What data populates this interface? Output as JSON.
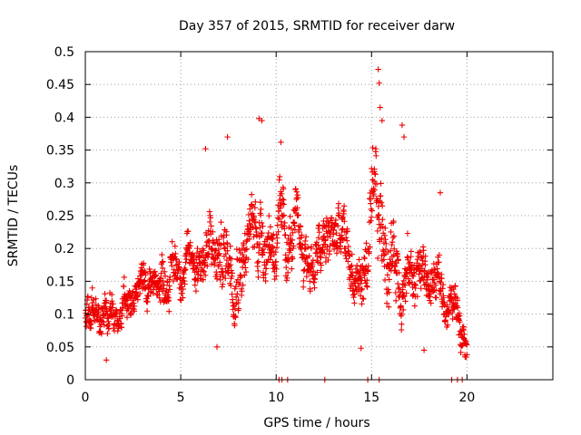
{
  "chart_data": {
    "type": "scatter",
    "title": "Day 357 of 2015, SRMTID for receiver darw",
    "xlabel": "GPS time / hours",
    "ylabel": "SRMTID / TECUs",
    "xlim": [
      0,
      24.5
    ],
    "ylim": [
      0,
      0.5
    ],
    "xticks": [
      0,
      5,
      10,
      15,
      20
    ],
    "xtick_labels": [
      "0",
      "5",
      "10",
      "15",
      "20"
    ],
    "yticks": [
      0,
      0.05,
      0.1,
      0.15,
      0.2,
      0.25,
      0.3,
      0.35,
      0.4,
      0.45,
      0.5
    ],
    "ytick_labels": [
      "0",
      "0.05",
      "0.1",
      "0.15",
      "0.2",
      "0.25",
      "0.3",
      "0.35",
      "0.4",
      "0.45",
      "0.5"
    ],
    "grid": true,
    "marker": "plus",
    "marker_color": "#ee0000",
    "series": [
      {
        "name": "SRMTID",
        "envelope": {
          "hours": [
            0.0,
            0.5,
            1.0,
            1.5,
            2.0,
            2.5,
            3.0,
            3.5,
            4.0,
            4.5,
            5.0,
            5.5,
            6.0,
            6.5,
            7.0,
            7.5,
            8.0,
            8.5,
            9.0,
            9.5,
            10.0,
            10.5,
            11.0,
            11.5,
            12.0,
            12.5,
            13.0,
            13.5,
            14.0,
            14.5,
            15.0,
            15.5,
            16.0,
            16.5,
            17.0,
            17.5,
            18.0,
            18.5,
            19.0,
            19.5,
            20.0
          ],
          "center": [
            0.095,
            0.105,
            0.1,
            0.105,
            0.1,
            0.11,
            0.14,
            0.15,
            0.16,
            0.17,
            0.18,
            0.175,
            0.2,
            0.19,
            0.18,
            0.2,
            0.22,
            0.2,
            0.24,
            0.23,
            0.22,
            0.2,
            0.21,
            0.19,
            0.18,
            0.19,
            0.22,
            0.2,
            0.16,
            0.15,
            0.21,
            0.22,
            0.2,
            0.18,
            0.16,
            0.17,
            0.15,
            0.14,
            0.12,
            0.11,
            0.09
          ],
          "spread": [
            0.035,
            0.04,
            0.04,
            0.035,
            0.035,
            0.04,
            0.04,
            0.035,
            0.05,
            0.05,
            0.045,
            0.045,
            0.06,
            0.07,
            0.07,
            0.08,
            0.08,
            0.07,
            0.08,
            0.07,
            0.07,
            0.07,
            0.06,
            0.06,
            0.06,
            0.06,
            0.07,
            0.07,
            0.06,
            0.06,
            0.09,
            0.1,
            0.08,
            0.07,
            0.06,
            0.06,
            0.05,
            0.05,
            0.04,
            0.04,
            0.04
          ],
          "time_step_hours": 0.0125
        },
        "outliers": [
          {
            "x": 15.35,
            "y": 0.473
          },
          {
            "x": 15.4,
            "y": 0.452
          },
          {
            "x": 15.45,
            "y": 0.415
          },
          {
            "x": 15.55,
            "y": 0.395
          },
          {
            "x": 9.1,
            "y": 0.398
          },
          {
            "x": 9.25,
            "y": 0.395
          },
          {
            "x": 16.6,
            "y": 0.388
          },
          {
            "x": 16.7,
            "y": 0.37
          },
          {
            "x": 7.45,
            "y": 0.37
          },
          {
            "x": 10.25,
            "y": 0.362
          },
          {
            "x": 6.3,
            "y": 0.352
          },
          {
            "x": 18.6,
            "y": 0.285
          },
          {
            "x": 10.15,
            "y": 0.0
          },
          {
            "x": 10.3,
            "y": 0.0
          },
          {
            "x": 10.6,
            "y": 0.0
          },
          {
            "x": 12.55,
            "y": 0.0
          },
          {
            "x": 14.8,
            "y": 0.0
          },
          {
            "x": 15.4,
            "y": 0.0
          },
          {
            "x": 19.2,
            "y": 0.0
          },
          {
            "x": 19.5,
            "y": 0.0
          },
          {
            "x": 19.75,
            "y": 0.0
          },
          {
            "x": 1.1,
            "y": 0.03
          },
          {
            "x": 6.9,
            "y": 0.05
          },
          {
            "x": 14.45,
            "y": 0.048
          },
          {
            "x": 17.75,
            "y": 0.045
          }
        ]
      }
    ]
  }
}
